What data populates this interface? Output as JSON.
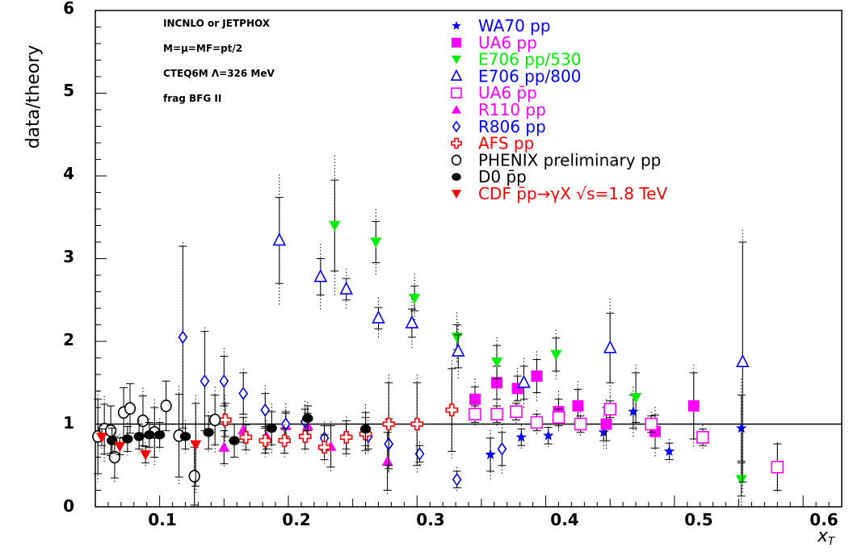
{
  "chart_data": {
    "type": "scatter",
    "ylabel": "data/theory",
    "xlabel": "x_T",
    "xlim": [
      0.05,
      0.63
    ],
    "ylim": [
      0,
      6
    ],
    "xticks": [
      "0.1",
      "0.2",
      "0.3",
      "0.4",
      "0.5",
      "0.6"
    ],
    "yticks": [
      "0",
      "1",
      "2",
      "3",
      "4",
      "5",
      "6"
    ],
    "reference_line": 1,
    "annotations": [
      "INCNLO or JETPHOX",
      "M=μ=MF=pt/2",
      "CTEQ6M Λ=326 MeV",
      "frag  BFG II"
    ],
    "legend_position": "top-right",
    "series": [
      {
        "name": "WA70 pp",
        "color": "#0000ff",
        "marker": "star",
        "points": [
          [
            0.357,
            0.63,
            0.2,
            0.3
          ],
          [
            0.381,
            0.84,
            0.1,
            0.15
          ],
          [
            0.402,
            0.86,
            0.1,
            0.15
          ],
          [
            0.445,
            0.9,
            0.1,
            0.2
          ],
          [
            0.468,
            1.15,
            0.2,
            0.3
          ],
          [
            0.496,
            0.67,
            0.1,
            0.15
          ],
          [
            0.552,
            0.95,
            0.4,
            0.6
          ]
        ]
      },
      {
        "name": "UA6 pp",
        "color": "#ff00ff",
        "marker": "square",
        "points": [
          [
            0.345,
            1.3,
            0.15,
            0.25
          ],
          [
            0.362,
            1.5,
            0.2,
            0.3
          ],
          [
            0.378,
            1.43,
            0.15,
            0.25
          ],
          [
            0.393,
            1.58,
            0.2,
            0.3
          ],
          [
            0.41,
            1.15,
            0.15,
            0.25
          ],
          [
            0.425,
            1.22,
            0.2,
            0.3
          ],
          [
            0.447,
            1.0,
            0.2,
            0.3
          ],
          [
            0.485,
            0.91,
            0.2,
            0.3
          ],
          [
            0.515,
            1.22,
            0.4,
            0.5
          ]
        ]
      },
      {
        "name": "E706 pp/530",
        "color": "#00ee00",
        "marker": "triangle-down",
        "points": [
          [
            0.236,
            3.4,
            0.55,
            0.85
          ],
          [
            0.268,
            3.2,
            0.25,
            0.4
          ],
          [
            0.298,
            2.52,
            0.15,
            0.3
          ],
          [
            0.331,
            2.05,
            0.15,
            0.3
          ],
          [
            0.362,
            1.75,
            0.2,
            0.3
          ],
          [
            0.408,
            1.84,
            0.2,
            0.3
          ],
          [
            0.47,
            1.32,
            0.3,
            0.4
          ],
          [
            0.552,
            0.33,
            0.2,
            0.4
          ]
        ]
      },
      {
        "name": "E706 pp/800",
        "color": "#0000ff",
        "marker": "triangle-open",
        "points": [
          [
            0.193,
            3.22,
            0.52,
            0.8
          ],
          [
            0.225,
            2.78,
            0.22,
            0.4
          ],
          [
            0.245,
            2.63,
            0.13,
            0.25
          ],
          [
            0.27,
            2.28,
            0.13,
            0.25
          ],
          [
            0.296,
            2.22,
            0.17,
            0.3
          ],
          [
            0.332,
            1.88,
            0.2,
            0.35
          ],
          [
            0.383,
            1.5,
            0.2,
            0.3
          ],
          [
            0.45,
            1.92,
            0.42,
            0.6
          ],
          [
            0.553,
            1.75,
            1.45,
            1.6
          ]
        ]
      },
      {
        "name": "UA6 p̄p",
        "color": "#ff00ff",
        "marker": "square-open",
        "points": [
          [
            0.345,
            1.12,
            0.1,
            0.15
          ],
          [
            0.362,
            1.12,
            0.1,
            0.15
          ],
          [
            0.377,
            1.15,
            0.1,
            0.15
          ],
          [
            0.393,
            1.02,
            0.1,
            0.15
          ],
          [
            0.41,
            1.08,
            0.1,
            0.15
          ],
          [
            0.427,
            1.0,
            0.1,
            0.15
          ],
          [
            0.45,
            1.18,
            0.1,
            0.15
          ],
          [
            0.482,
            1.0,
            0.1,
            0.15
          ],
          [
            0.522,
            0.84,
            0.1,
            0.15
          ],
          [
            0.58,
            0.48,
            0.28,
            0.3
          ]
        ]
      },
      {
        "name": "R110 pp",
        "color": "#ff00ff",
        "marker": "triangle",
        "points": [
          [
            0.15,
            0.72,
            0.2,
            0.25
          ],
          [
            0.165,
            0.93,
            0.15,
            0.2
          ],
          [
            0.183,
            0.85,
            0.15,
            0.2
          ],
          [
            0.198,
            0.98,
            0.15,
            0.2
          ],
          [
            0.215,
            0.98,
            0.15,
            0.2
          ],
          [
            0.233,
            0.73,
            0.25,
            0.3
          ],
          [
            0.277,
            0.55,
            0.35,
            0.4
          ]
        ]
      },
      {
        "name": "R806 pp",
        "color": "#0000ff",
        "marker": "diamond-open",
        "points": [
          [
            0.118,
            2.05,
            1.1,
            1.15
          ],
          [
            0.135,
            1.52,
            0.6,
            0.65
          ],
          [
            0.15,
            1.52,
            0.3,
            0.4
          ],
          [
            0.165,
            1.37,
            0.25,
            0.3
          ],
          [
            0.182,
            1.17,
            0.2,
            0.3
          ],
          [
            0.198,
            1.0,
            0.15,
            0.25
          ],
          [
            0.213,
            1.03,
            0.15,
            0.25
          ],
          [
            0.228,
            0.83,
            0.15,
            0.2
          ],
          [
            0.245,
            0.85,
            0.15,
            0.2
          ],
          [
            0.262,
            0.85,
            0.15,
            0.2
          ],
          [
            0.278,
            0.76,
            0.3,
            0.35
          ],
          [
            0.302,
            0.64,
            0.1,
            0.15
          ],
          [
            0.331,
            0.33,
            0.1,
            0.15
          ],
          [
            0.366,
            0.7,
            0.2,
            0.3
          ]
        ]
      },
      {
        "name": "AFS pp",
        "color": "#ff0000",
        "marker": "cross-open",
        "points": [
          [
            0.151,
            1.05,
            0.2,
            0.3
          ],
          [
            0.167,
            0.84,
            0.15,
            0.2
          ],
          [
            0.182,
            0.8,
            0.15,
            0.2
          ],
          [
            0.197,
            0.8,
            0.15,
            0.2
          ],
          [
            0.213,
            0.85,
            0.15,
            0.2
          ],
          [
            0.228,
            0.72,
            0.15,
            0.2
          ],
          [
            0.245,
            0.84,
            0.2,
            0.25
          ],
          [
            0.26,
            0.88,
            0.2,
            0.25
          ],
          [
            0.278,
            1.0,
            0.5,
            0.6
          ],
          [
            0.3,
            1.0,
            0.5,
            0.6
          ],
          [
            0.327,
            1.17,
            0.5,
            0.6
          ]
        ]
      },
      {
        "name": "PHENIX preliminary pp",
        "color": "#000000",
        "marker": "circle-open",
        "points": [
          [
            0.052,
            0.85,
            0.45,
            0.55
          ],
          [
            0.057,
            0.94,
            0.3,
            0.4
          ],
          [
            0.062,
            0.92,
            0.3,
            0.3
          ],
          [
            0.065,
            0.6,
            0.25,
            0.3
          ],
          [
            0.072,
            1.14,
            0.3,
            0.3
          ],
          [
            0.077,
            1.19,
            0.3,
            0.3
          ],
          [
            0.087,
            1.04,
            0.3,
            0.4
          ],
          [
            0.096,
            0.9,
            0.3,
            0.4
          ],
          [
            0.105,
            1.22,
            0.3,
            0.3
          ],
          [
            0.115,
            0.86,
            0.5,
            0.6
          ],
          [
            0.127,
            0.37,
            0.35,
            0.4
          ],
          [
            0.143,
            1.05,
            0.3,
            0.4
          ]
        ]
      },
      {
        "name": "D0 p̄p",
        "color": "#000000",
        "marker": "circle",
        "points": [
          [
            0.063,
            0.8,
            0.15,
            0.2
          ],
          [
            0.075,
            0.82,
            0.15,
            0.2
          ],
          [
            0.084,
            0.85,
            0.15,
            0.2
          ],
          [
            0.092,
            0.87,
            0.15,
            0.2
          ],
          [
            0.1,
            0.87,
            0.15,
            0.2
          ],
          [
            0.12,
            0.85,
            0.15,
            0.2
          ],
          [
            0.138,
            0.9,
            0.2,
            0.25
          ],
          [
            0.158,
            0.8,
            0.2,
            0.2
          ],
          [
            0.187,
            0.95,
            0.2,
            0.3
          ],
          [
            0.215,
            1.07,
            0.15,
            0.2
          ],
          [
            0.26,
            0.94,
            0.2,
            0.3
          ]
        ]
      },
      {
        "name": "CDF p̄p→γX √s=1.8 TeV",
        "color": "#ff0000",
        "marker": "triangle-down",
        "points": [
          [
            0.055,
            0.84,
            0.1,
            0.15
          ],
          [
            0.069,
            0.73,
            0.1,
            0.15
          ],
          [
            0.089,
            0.63,
            0.1,
            0.15
          ],
          [
            0.128,
            0.75,
            0.5,
            0.6
          ]
        ]
      }
    ]
  }
}
